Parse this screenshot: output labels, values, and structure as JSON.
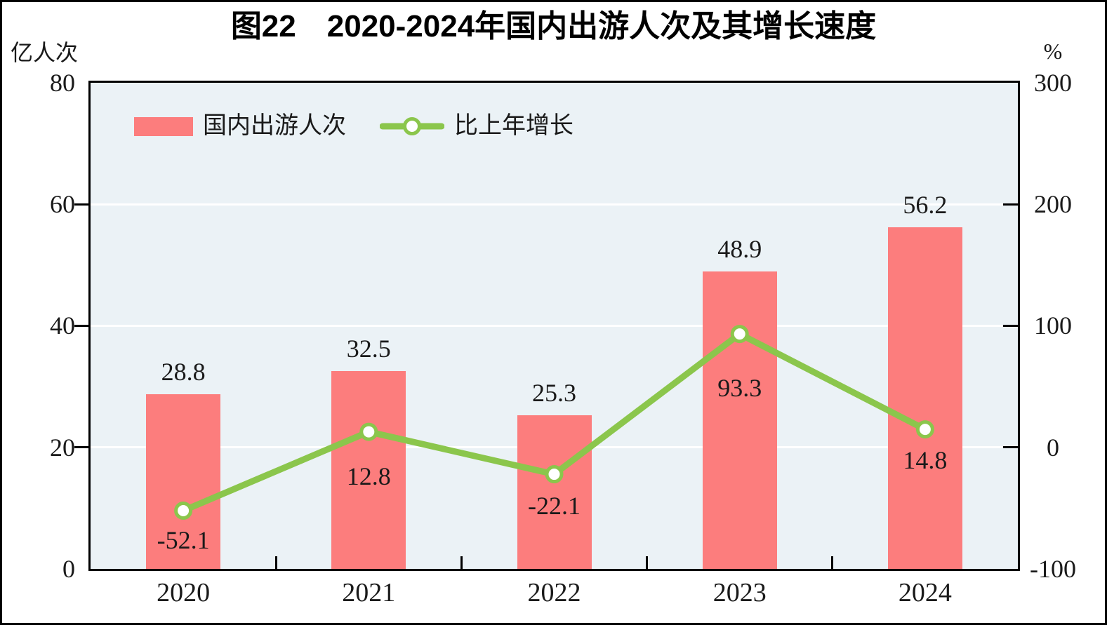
{
  "figure": {
    "title": "图22　2020-2024年国内出游人次及其增长速度",
    "left_axis": {
      "unit": "亿人次",
      "ticks": [
        "80",
        "60",
        "40",
        "20",
        "0"
      ],
      "min": 0,
      "max": 80
    },
    "right_axis": {
      "unit": "%",
      "ticks": [
        "300",
        "200",
        "100",
        "0",
        "-100"
      ],
      "min": -100,
      "max": 300
    },
    "legend": {
      "bar_label": "国内出游人次",
      "line_label": "比上年增长"
    }
  },
  "colors": {
    "bar": "#FC7D7D",
    "line": "#8BC64C",
    "marker_fill": "#FFFFFF",
    "plot_bg": "#EBF2F6",
    "grid": "#FFFFFF",
    "axis": "#000000",
    "text": "#1A1A1A"
  },
  "chart_data": {
    "type": "bar+line combo with dual y-axes",
    "title": "图22　2020-2024年国内出游人次及其增长速度",
    "categories": [
      "2020",
      "2021",
      "2022",
      "2023",
      "2024"
    ],
    "series": [
      {
        "name": "国内出游人次",
        "type": "bar",
        "axis": "left",
        "unit": "亿人次",
        "values": [
          28.8,
          32.5,
          25.3,
          48.9,
          56.2
        ],
        "labels": [
          "28.8",
          "32.5",
          "25.3",
          "48.9",
          "56.2"
        ]
      },
      {
        "name": "比上年增长",
        "type": "line",
        "axis": "right",
        "unit": "%",
        "values": [
          -52.1,
          12.8,
          -22.1,
          93.3,
          14.8
        ],
        "labels": [
          "-52.1",
          "12.8",
          "-22.1",
          "93.3",
          "14.8"
        ],
        "label_dy": [
          22,
          43,
          25,
          57,
          24
        ]
      }
    ],
    "left_ylim": [
      0,
      80
    ],
    "right_ylim": [
      -100,
      300
    ],
    "gridlines_left_values": [
      20,
      40,
      60
    ],
    "grid": true,
    "legend_position": "top-left inside plot area"
  }
}
